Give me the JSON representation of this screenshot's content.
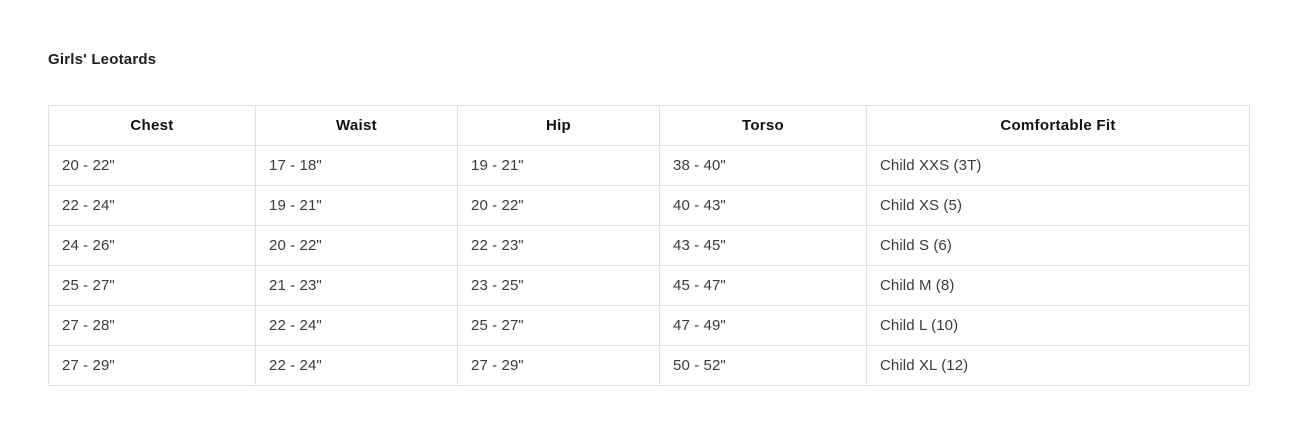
{
  "title": "Girls' Leotards",
  "table": {
    "headers": [
      "Chest",
      "Waist",
      "Hip",
      "Torso",
      "Comfortable Fit"
    ],
    "rows": [
      {
        "cells": [
          "20 - 22\"",
          "17 - 18\"",
          "19 - 21\"",
          "38 - 40\"",
          "Child XXS (3T)"
        ]
      },
      {
        "cells": [
          "22 - 24\"",
          "19 - 21\"",
          "20 - 22\"",
          "40 - 43\"",
          "Child XS (5)"
        ]
      },
      {
        "cells": [
          "24 - 26\"",
          "20 - 22\"",
          "22 - 23\"",
          "43 - 45\"",
          "Child S (6)"
        ]
      },
      {
        "cells": [
          "25 - 27\"",
          "21 - 23\"",
          "23 - 25\"",
          "45 - 47\"",
          "Child M (8)"
        ]
      },
      {
        "cells": [
          "27 - 28\"",
          "22 - 24\"",
          "25 - 27\"",
          "47 - 49\"",
          "Child L (10)"
        ]
      },
      {
        "cells": [
          "27 - 29\"",
          "22 - 24\"",
          "27 - 29\"",
          "50 - 52\"",
          "Child XL (12)"
        ]
      }
    ]
  },
  "colors": {
    "border": "#e1e1e1",
    "header_text": "#111111",
    "cell_text": "#3b3b3b",
    "title_text": "#1f1f1f",
    "background": "#ffffff"
  }
}
